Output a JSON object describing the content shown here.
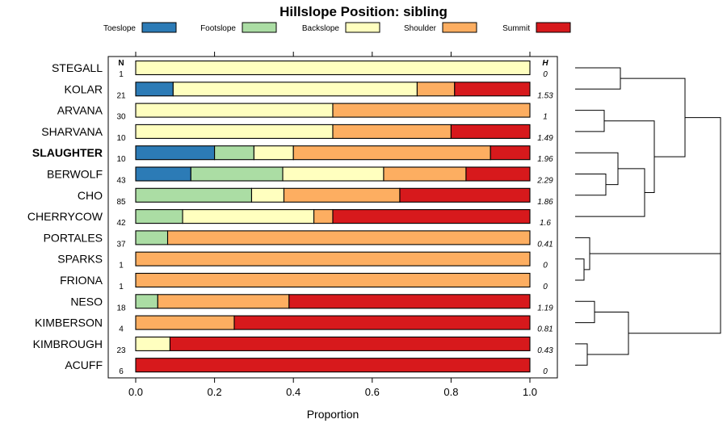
{
  "chart_data": {
    "type": "bar",
    "orientation": "horizontal",
    "stacked": true,
    "title": "Hillslope Position: sibling",
    "xlabel": "Proportion",
    "xlim": [
      0,
      1
    ],
    "xticks": [
      "0.0",
      "0.2",
      "0.4",
      "0.6",
      "0.8",
      "1.0"
    ],
    "n_header": "N",
    "h_header": "H",
    "legend_position": "top",
    "legend": [
      {
        "name": "Toeslope",
        "color": "#2c7bb6"
      },
      {
        "name": "Footslope",
        "color": "#abdda4"
      },
      {
        "name": "Backslope",
        "color": "#ffffbf"
      },
      {
        "name": "Shoulder",
        "color": "#fdae61"
      },
      {
        "name": "Summit",
        "color": "#d7191c"
      }
    ],
    "highlight": "SLAUGHTER",
    "rows": [
      {
        "label": "STEGALL",
        "n": "1",
        "h": "0",
        "values": [
          0,
          0,
          1,
          0,
          0
        ]
      },
      {
        "label": "KOLAR",
        "n": "21",
        "h": "1.53",
        "values": [
          0.095,
          0,
          0.619,
          0.095,
          0.191
        ]
      },
      {
        "label": "ARVANA",
        "n": "30",
        "h": "1",
        "values": [
          0,
          0,
          0.5,
          0.5,
          0
        ]
      },
      {
        "label": "SHARVANA",
        "n": "10",
        "h": "1.49",
        "values": [
          0,
          0,
          0.5,
          0.3,
          0.2
        ]
      },
      {
        "label": "SLAUGHTER",
        "n": "10",
        "h": "1.96",
        "values": [
          0.2,
          0.1,
          0.1,
          0.5,
          0.1
        ]
      },
      {
        "label": "BERWOLF",
        "n": "43",
        "h": "2.29",
        "values": [
          0.14,
          0.233,
          0.256,
          0.209,
          0.162
        ]
      },
      {
        "label": "CHO",
        "n": "85",
        "h": "1.86",
        "values": [
          0,
          0.294,
          0.082,
          0.294,
          0.33
        ]
      },
      {
        "label": "CHERRYCOW",
        "n": "42",
        "h": "1.6",
        "values": [
          0,
          0.119,
          0.333,
          0.048,
          0.5
        ]
      },
      {
        "label": "PORTALES",
        "n": "37",
        "h": "0.41",
        "values": [
          0,
          0.081,
          0,
          0.919,
          0
        ]
      },
      {
        "label": "SPARKS",
        "n": "1",
        "h": "0",
        "values": [
          0,
          0,
          0,
          1,
          0
        ]
      },
      {
        "label": "FRIONA",
        "n": "1",
        "h": "0",
        "values": [
          0,
          0,
          0,
          1,
          0
        ]
      },
      {
        "label": "NESO",
        "n": "18",
        "h": "1.19",
        "values": [
          0,
          0.056,
          0,
          0.333,
          0.611
        ]
      },
      {
        "label": "KIMBERSON",
        "n": "4",
        "h": "0.81",
        "values": [
          0,
          0,
          0,
          0.25,
          0.75
        ]
      },
      {
        "label": "KIMBROUGH",
        "n": "23",
        "h": "0.43",
        "values": [
          0,
          0,
          0.087,
          0,
          0.913
        ]
      },
      {
        "label": "ACUFF",
        "n": "6",
        "h": "0",
        "values": [
          0,
          0,
          0,
          0,
          1
        ]
      }
    ]
  }
}
